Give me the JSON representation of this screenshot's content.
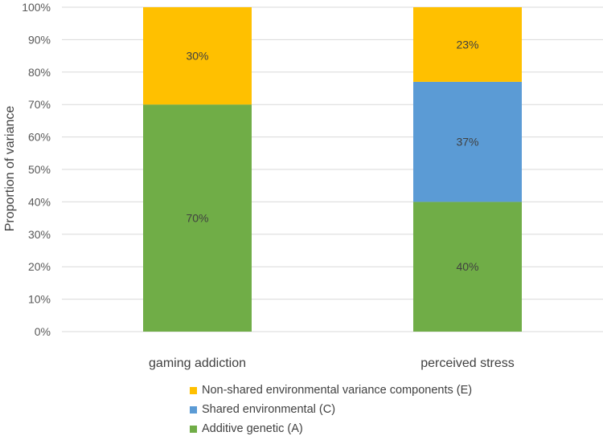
{
  "chart_data": {
    "type": "bar",
    "stacked": true,
    "title": "",
    "xlabel": "",
    "ylabel": "Proportion of variance",
    "ylim": [
      0,
      100
    ],
    "ytick_step": 10,
    "ytick_labels": [
      "0%",
      "10%",
      "20%",
      "30%",
      "40%",
      "50%",
      "60%",
      "70%",
      "80%",
      "90%",
      "100%"
    ],
    "categories": [
      "gaming addiction",
      "perceived stress"
    ],
    "series": [
      {
        "name": "Additive genetic (A)",
        "color": "#70AD47",
        "values": [
          70,
          40
        ],
        "labels": [
          "70%",
          "40%"
        ]
      },
      {
        "name": "Shared environmental (C)",
        "color": "#5B9BD5",
        "values": [
          0,
          37
        ],
        "labels": [
          "",
          "37%"
        ]
      },
      {
        "name": "Non-shared environmental variance components (E)",
        "color": "#FFC000",
        "values": [
          30,
          23
        ],
        "labels": [
          "30%",
          "23%"
        ]
      }
    ],
    "legend_order": [
      2,
      1,
      0
    ],
    "legend_position": "bottom"
  }
}
